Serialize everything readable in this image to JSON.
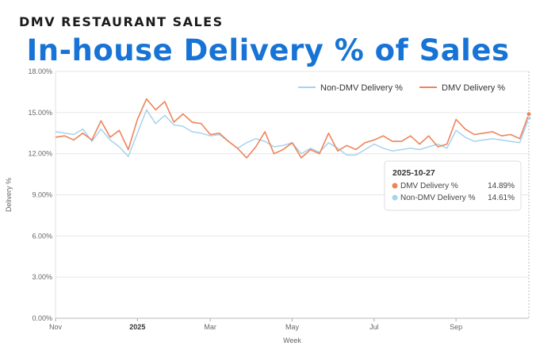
{
  "kicker": "DMV RESTAURANT SALES",
  "headline": "In-house Delivery % of Sales",
  "chart_data": {
    "type": "line",
    "title": "In-house Delivery % of Sales",
    "xlabel": "Week",
    "ylabel": "Delivery %",
    "ylim": [
      0,
      18
    ],
    "yticks": [
      "0.00%",
      "3.00%",
      "6.00%",
      "9.00%",
      "12.00%",
      "15.00%",
      "18.00%"
    ],
    "xticks": [
      {
        "label": "Nov",
        "week": 1,
        "bold": false
      },
      {
        "label": "2025",
        "week": 10,
        "bold": true
      },
      {
        "label": "Mar",
        "week": 18,
        "bold": false
      },
      {
        "label": "May",
        "week": 27,
        "bold": false
      },
      {
        "label": "Jul",
        "week": 36,
        "bold": false
      },
      {
        "label": "Sep",
        "week": 45,
        "bold": false
      }
    ],
    "x_end_week": 53,
    "series": [
      {
        "name": "Non-DMV Delivery %",
        "color": "#a6d3ee",
        "values": [
          13.6,
          13.5,
          13.4,
          13.8,
          12.9,
          13.8,
          13.0,
          12.5,
          11.8,
          13.5,
          15.2,
          14.2,
          14.8,
          14.1,
          14.0,
          13.6,
          13.5,
          13.3,
          13.4,
          12.9,
          12.4,
          12.8,
          13.1,
          12.9,
          12.5,
          12.6,
          12.8,
          12.0,
          12.4,
          12.1,
          12.8,
          12.4,
          11.9,
          11.9,
          12.3,
          12.7,
          12.4,
          12.2,
          12.3,
          12.4,
          12.3,
          12.5,
          12.7,
          12.4,
          13.7,
          13.2,
          12.9,
          13.0,
          13.1,
          13.0,
          12.9,
          12.8,
          14.61
        ]
      },
      {
        "name": "DMV Delivery %",
        "color": "#ef8459",
        "values": [
          13.2,
          13.3,
          13.0,
          13.5,
          13.0,
          14.4,
          13.2,
          13.7,
          12.3,
          14.5,
          16.0,
          15.2,
          15.8,
          14.3,
          14.9,
          14.3,
          14.2,
          13.4,
          13.5,
          12.9,
          12.4,
          11.7,
          12.5,
          13.6,
          12.0,
          12.3,
          12.8,
          11.7,
          12.3,
          12.0,
          13.5,
          12.2,
          12.6,
          12.3,
          12.8,
          13.0,
          13.3,
          12.9,
          12.9,
          13.3,
          12.7,
          13.3,
          12.5,
          12.7,
          14.5,
          13.8,
          13.4,
          13.5,
          13.6,
          13.3,
          13.4,
          13.1,
          14.89
        ]
      }
    ],
    "legend_position": "top-right",
    "tooltip": {
      "date": "2025-10-27",
      "rows": [
        {
          "name": "DMV Delivery %",
          "value": "14.89%",
          "color": "#ef8459"
        },
        {
          "name": "Non-DMV Delivery %",
          "value": "14.61%",
          "color": "#a6d3ee"
        }
      ]
    }
  }
}
